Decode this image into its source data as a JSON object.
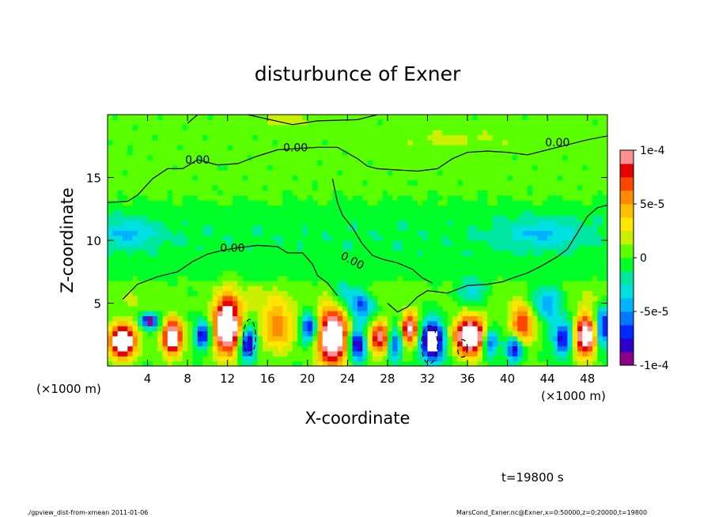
{
  "chart_data": {
    "type": "heatmap",
    "title": "disturbunce of Exner",
    "xlabel": "X-coordinate",
    "ylabel": "Z-coordinate",
    "x_unit": "(×1000 m)",
    "xlim": [
      0,
      50
    ],
    "ylim": [
      0,
      20
    ],
    "x_ticks": [
      4,
      8,
      12,
      16,
      20,
      24,
      28,
      32,
      36,
      40,
      44,
      48
    ],
    "y_ticks": [
      5,
      10,
      15
    ],
    "colorbar": {
      "range": [
        -0.0001,
        0.0001
      ],
      "ticks": [
        {
          "value": 0.0001,
          "label": "1e-4"
        },
        {
          "value": 5e-05,
          "label": "5e-5"
        },
        {
          "value": 0,
          "label": "0"
        },
        {
          "value": -5e-05,
          "label": "-5e-5"
        },
        {
          "value": -0.0001,
          "label": "-1e-4"
        }
      ],
      "colors": [
        "#8b008b",
        "#2b00c8",
        "#0028ff",
        "#0078ff",
        "#00b4ff",
        "#00e0e0",
        "#00e6a0",
        "#00ff28",
        "#5aff00",
        "#c8f000",
        "#ffe600",
        "#ffbe00",
        "#ff8c00",
        "#ff4600",
        "#e60000",
        "#ff9090"
      ]
    },
    "contour_labels": [
      "0.00",
      "0.00",
      "0.00",
      "0.00",
      "0.00"
    ],
    "time_label": "t=19800 s",
    "footer_left": "./gpview_dist-from-xmean  2011-01-06",
    "footer_right": "MarsCond_Exner.nc@Exner,x=0:50000,z=0:20000,t=19800"
  }
}
